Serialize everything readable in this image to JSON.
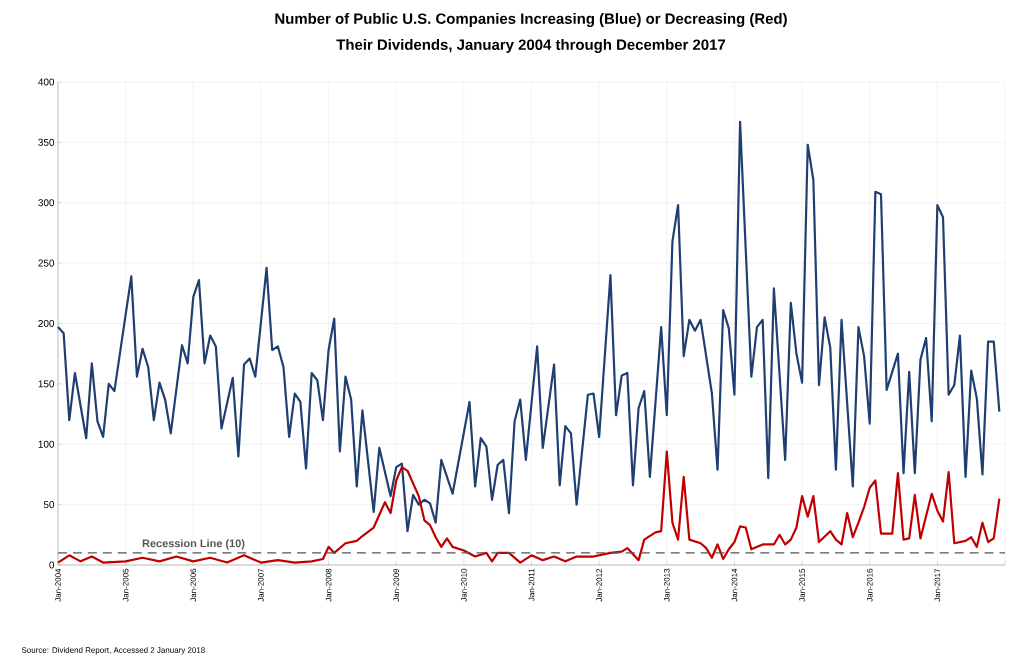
{
  "chart_data": {
    "type": "line",
    "title": "Number of Public U.S. Companies Increasing (Blue) or Decreasing (Red)",
    "subtitle": "Their Dividends, January 2004 through December 2017",
    "xlim": [
      "2004-01",
      "2018-01"
    ],
    "xticks": [
      {
        "value": "2004-01",
        "label": "Jan-2004"
      },
      {
        "value": "2005-01",
        "label": "Jan-2005"
      },
      {
        "value": "2006-01",
        "label": "Jan-2006"
      },
      {
        "value": "2007-01",
        "label": "Jan-2007"
      },
      {
        "value": "2008-01",
        "label": "Jan-2008"
      },
      {
        "value": "2009-01",
        "label": "Jan-2009"
      },
      {
        "value": "2010-01",
        "label": "Jan-2010"
      },
      {
        "value": "2011-01",
        "label": "Jan-2011"
      },
      {
        "value": "2012-01",
        "label": "Jan-2012"
      },
      {
        "value": "2013-01",
        "label": "Jan-2013"
      },
      {
        "value": "2014-01",
        "label": "Jan-2014"
      },
      {
        "value": "2015-01",
        "label": "Jan-2015"
      },
      {
        "value": "2016-01",
        "label": "Jan-2016"
      },
      {
        "value": "2017-01",
        "label": "Jan-2017"
      },
      {
        "value": "2018-01",
        "label": null
      }
    ],
    "ylim": [
      0,
      400
    ],
    "yticks": [
      0,
      50,
      100,
      150,
      200,
      250,
      300,
      350,
      400
    ],
    "grid": true,
    "series": [
      {
        "color": "#1f3f73",
        "x": [
          "2004-01",
          "2004-02",
          "2004-03",
          "2004-04",
          "2004-06",
          "2004-07",
          "2004-08",
          "2004-09",
          "2004-10",
          "2004-11",
          "2005-02",
          "2005-03",
          "2005-04",
          "2005-05",
          "2005-06",
          "2005-07",
          "2005-08",
          "2005-09",
          "2005-11",
          "2005-12",
          "2006-01",
          "2006-02",
          "2006-03",
          "2006-04",
          "2006-05",
          "2006-06",
          "2006-08",
          "2006-09",
          "2006-10",
          "2006-11",
          "2006-12",
          "2007-02",
          "2007-03",
          "2007-04",
          "2007-05",
          "2007-06",
          "2007-07",
          "2007-08",
          "2007-09",
          "2007-10",
          "2007-11",
          "2007-12",
          "2008-01",
          "2008-02",
          "2008-03",
          "2008-04",
          "2008-05",
          "2008-06",
          "2008-07",
          "2008-09",
          "2008-10",
          "2008-12",
          "2009-01",
          "2009-02",
          "2009-03",
          "2009-04",
          "2009-05",
          "2009-06",
          "2009-07",
          "2009-08",
          "2009-09",
          "2009-11",
          "2010-02",
          "2010-03",
          "2010-04",
          "2010-05",
          "2010-06",
          "2010-07",
          "2010-08",
          "2010-09",
          "2010-10",
          "2010-11",
          "2010-12",
          "2011-02",
          "2011-03",
          "2011-05",
          "2011-06",
          "2011-07",
          "2011-08",
          "2011-09",
          "2011-11",
          "2011-12",
          "2012-01",
          "2012-03",
          "2012-04",
          "2012-05",
          "2012-06",
          "2012-07",
          "2012-08",
          "2012-09",
          "2012-10",
          "2012-12",
          "2013-01",
          "2013-02",
          "2013-03",
          "2013-04",
          "2013-05",
          "2013-06",
          "2013-07",
          "2013-09",
          "2013-10",
          "2013-11",
          "2013-12",
          "2014-01",
          "2014-02",
          "2014-04",
          "2014-05",
          "2014-06",
          "2014-07",
          "2014-08",
          "2014-10",
          "2014-11",
          "2014-12",
          "2015-01",
          "2015-02",
          "2015-03",
          "2015-04",
          "2015-05",
          "2015-06",
          "2015-07",
          "2015-08",
          "2015-10",
          "2015-11",
          "2015-12",
          "2016-01",
          "2016-02",
          "2016-03",
          "2016-04",
          "2016-06",
          "2016-07",
          "2016-08",
          "2016-09",
          "2016-10",
          "2016-11",
          "2016-12",
          "2017-01",
          "2017-02",
          "2017-03",
          "2017-04",
          "2017-05",
          "2017-06",
          "2017-07",
          "2017-08",
          "2017-09",
          "2017-10",
          "2017-11",
          "2017-12"
        ],
        "values": [
          197,
          192,
          120,
          159,
          105,
          167,
          119,
          106,
          150,
          144,
          239,
          156,
          179,
          164,
          120,
          151,
          137,
          109,
          182,
          167,
          222,
          236,
          167,
          190,
          181,
          113,
          155,
          90,
          166,
          171,
          156,
          246,
          178,
          181,
          164,
          106,
          142,
          135,
          80,
          159,
          153,
          120,
          178,
          204,
          94,
          156,
          137,
          65,
          128,
          44,
          97,
          57,
          81,
          84,
          28,
          58,
          50,
          54,
          51,
          35,
          87,
          59,
          135,
          65,
          105,
          98,
          54,
          83,
          87,
          43,
          119,
          137,
          87,
          181,
          97,
          166,
          66,
          115,
          109,
          50,
          141,
          142,
          106,
          240,
          124,
          157,
          159,
          66,
          130,
          144,
          73,
          197,
          124,
          268,
          298,
          173,
          203,
          194,
          203,
          142,
          79,
          211,
          196,
          141,
          367,
          156,
          197,
          203,
          72,
          229,
          87,
          217,
          175,
          151,
          348,
          319,
          149,
          205,
          180,
          79,
          203,
          65,
          197,
          173,
          117,
          309,
          307,
          145,
          175,
          76,
          160,
          76,
          170,
          188,
          119,
          298,
          288,
          141,
          149,
          190,
          73,
          161,
          138,
          75,
          185,
          185,
          127
        ]
      },
      {
        "color": "#c00000",
        "x": [
          "2004-01",
          "2004-03",
          "2004-05",
          "2004-07",
          "2004-09",
          "2005-01",
          "2005-04",
          "2005-07",
          "2005-10",
          "2006-01",
          "2006-04",
          "2006-07",
          "2006-10",
          "2007-01",
          "2007-04",
          "2007-07",
          "2007-10",
          "2007-12",
          "2008-01",
          "2008-02",
          "2008-04",
          "2008-06",
          "2008-07",
          "2008-09",
          "2008-11",
          "2008-12",
          "2009-01",
          "2009-02",
          "2009-03",
          "2009-05",
          "2009-06",
          "2009-07",
          "2009-08",
          "2009-09",
          "2009-10",
          "2009-11",
          "2010-01",
          "2010-03",
          "2010-05",
          "2010-06",
          "2010-07",
          "2010-09",
          "2010-11",
          "2011-01",
          "2011-03",
          "2011-05",
          "2011-07",
          "2011-09",
          "2011-12",
          "2012-03",
          "2012-05",
          "2012-06",
          "2012-08",
          "2012-09",
          "2012-11",
          "2012-12",
          "2013-01",
          "2013-02",
          "2013-03",
          "2013-04",
          "2013-05",
          "2013-07",
          "2013-08",
          "2013-09",
          "2013-10",
          "2013-11",
          "2013-12",
          "2014-01",
          "2014-02",
          "2014-03",
          "2014-04",
          "2014-06",
          "2014-08",
          "2014-09",
          "2014-10",
          "2014-11",
          "2014-12",
          "2015-01",
          "2015-02",
          "2015-03",
          "2015-04",
          "2015-06",
          "2015-07",
          "2015-08",
          "2015-09",
          "2015-10",
          "2015-11",
          "2015-12",
          "2016-01",
          "2016-02",
          "2016-03",
          "2016-05",
          "2016-06",
          "2016-07",
          "2016-08",
          "2016-09",
          "2016-10",
          "2016-12",
          "2017-01",
          "2017-02",
          "2017-03",
          "2017-04",
          "2017-06",
          "2017-07",
          "2017-08",
          "2017-09",
          "2017-10",
          "2017-11",
          "2017-12"
        ],
        "values": [
          2,
          8,
          3,
          7,
          2,
          3,
          6,
          3,
          7,
          3,
          6,
          2,
          8,
          2,
          4,
          2,
          3,
          5,
          15,
          10,
          18,
          20,
          24,
          31,
          52,
          43,
          70,
          81,
          78,
          57,
          37,
          33,
          23,
          15,
          22,
          15,
          12,
          7,
          10,
          3,
          10,
          10,
          2,
          8,
          4,
          7,
          3,
          7,
          7,
          10,
          11,
          14,
          4,
          21,
          27,
          28,
          94,
          35,
          21,
          73,
          21,
          18,
          14,
          6,
          17,
          5,
          13,
          19,
          32,
          31,
          13,
          17,
          17,
          25,
          17,
          21,
          31,
          57,
          40,
          57,
          19,
          28,
          21,
          17,
          43,
          23,
          35,
          48,
          64,
          70,
          26,
          26,
          76,
          21,
          22,
          58,
          22,
          59,
          45,
          36,
          77,
          18,
          20,
          23,
          15,
          35,
          19,
          22,
          55
        ]
      }
    ],
    "ref_lines": [
      {
        "axis": "y",
        "value": 10,
        "label": "Recession Line (10)",
        "color": "#555555",
        "line_style": "dashed"
      }
    ],
    "annotations": [
      "Source: Dividend Report, Accessed 2 January 2018"
    ]
  }
}
